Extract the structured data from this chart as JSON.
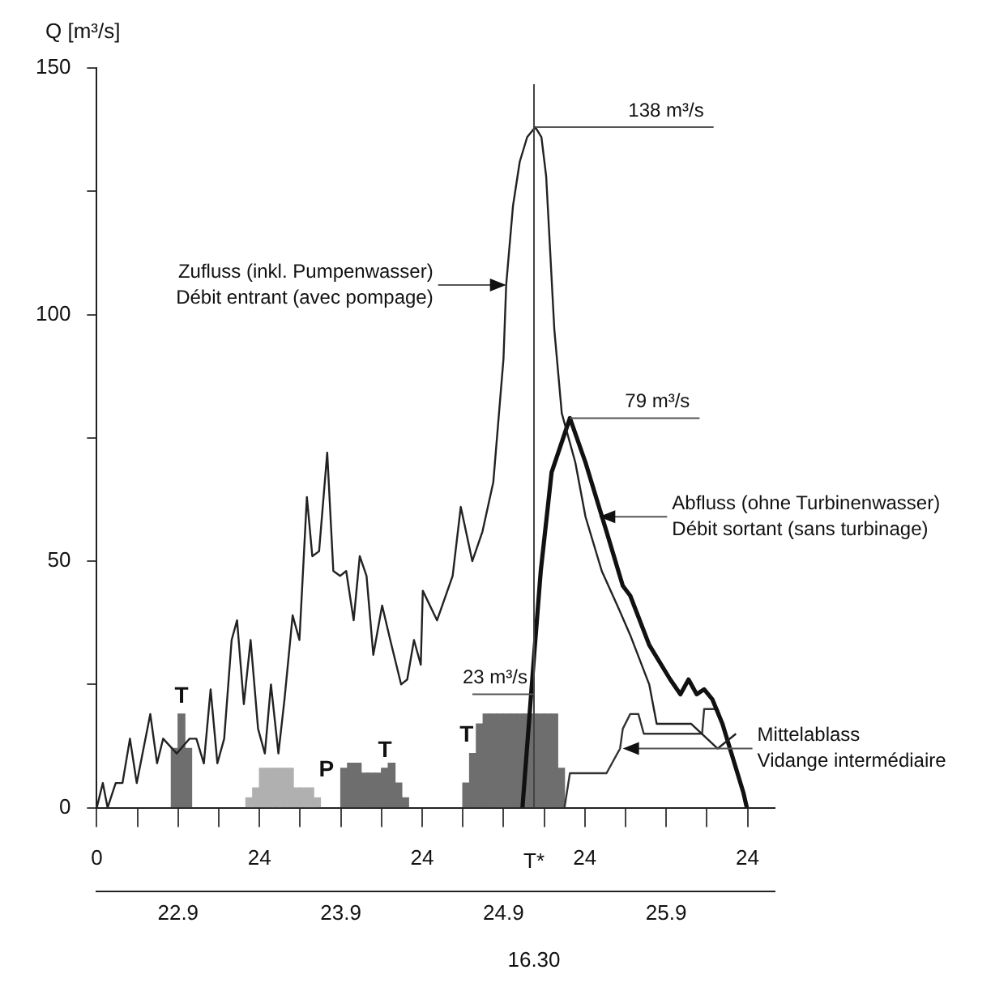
{
  "chart_data": {
    "type": "line",
    "ylabel": "Q [m³/s]",
    "xlim": [
      "--09-22T00:00",
      "--09-26T04:00"
    ],
    "ylim": [
      0,
      150
    ],
    "xticks": [
      {
        "value": "--09-22T00:00",
        "label": "0"
      },
      {
        "value": "--09-22T06:00",
        "label": null
      },
      {
        "value": "--09-22T12:00",
        "label": null
      },
      {
        "value": "--09-22T18:00",
        "label": null
      },
      {
        "value": "--09-23T00:00",
        "label": "24"
      },
      {
        "value": "--09-23T06:00",
        "label": null
      },
      {
        "value": "--09-23T12:00",
        "label": null
      },
      {
        "value": "--09-23T18:00",
        "label": null
      },
      {
        "value": "--09-24T00:00",
        "label": "24"
      },
      {
        "value": "--09-24T06:00",
        "label": null
      },
      {
        "value": "--09-24T12:00",
        "label": null
      },
      {
        "value": "--09-24T18:00",
        "label": null
      },
      {
        "value": "--09-25T00:00",
        "label": "24"
      },
      {
        "value": "--09-25T06:00",
        "label": null
      },
      {
        "value": "--09-25T12:00",
        "label": null
      },
      {
        "value": "--09-25T18:00",
        "label": null
      },
      {
        "value": "--09-26T00:00",
        "label": "24"
      }
    ],
    "x2lim": [
      "--09-22T00:00",
      "--09-26T04:00"
    ],
    "x2ticks": [
      {
        "value": "--09-22T12:00",
        "label": "22.9"
      },
      {
        "value": "--09-23T12:00",
        "label": "23.9"
      },
      {
        "value": "--09-24T12:00",
        "label": "24.9"
      },
      {
        "value": "--09-25T12:00",
        "label": "25.9"
      }
    ],
    "yticks": [
      0,
      {
        "value": 25,
        "label": null
      },
      50,
      {
        "value": 75,
        "label": null
      },
      100,
      {
        "value": 125,
        "label": null
      },
      150
    ],
    "series": [
      {
        "color": "#222222",
        "x": [
          "--09-22T00:00",
          "--09-22T00:54",
          "--09-22T01:36",
          "--09-22T02:48",
          "--09-22T03:48",
          "--09-22T04:54",
          "--09-22T05:54",
          "--09-22T07:54",
          "--09-22T08:54",
          "--09-22T09:48",
          "--09-22T11:48",
          "--09-22T13:42",
          "--09-22T14:42",
          "--09-22T15:48",
          "--09-22T16:48",
          "--09-22T17:48",
          "--09-22T18:48",
          "--09-22T19:54",
          "--09-22T20:42",
          "--09-22T21:42",
          "--09-22T22:42",
          "--09-22T23:48",
          "--09-23T00:48",
          "--09-23T01:42",
          "--09-23T02:48",
          "--09-23T03:42",
          "--09-23T04:54",
          "--09-23T05:54",
          "--09-23T07:00",
          "--09-23T07:48",
          "--09-23T08:48",
          "--09-23T10:00",
          "--09-23T10:54",
          "--09-23T11:54",
          "--09-23T12:48",
          "--09-23T13:54",
          "--09-23T14:48",
          "--09-23T15:48",
          "--09-23T16:48",
          "--09-23T18:06",
          "--09-23T19:18",
          "--09-23T20:54",
          "--09-23T21:48",
          "--09-23T22:48",
          "--09-23T23:48",
          "--09-24T00:06",
          "--09-24T02:12",
          "--09-24T04:30",
          "--09-24T05:42",
          "--09-24T07:24",
          "--09-24T08:54",
          "--09-24T10:30",
          "--09-24T12:00",
          "--09-24T12:24",
          "--09-24T13:24",
          "--09-24T14:24",
          "--09-24T15:30",
          "--09-24T16:42",
          "--09-24T17:36",
          "--09-24T18:18",
          "--09-24T19:30",
          "--09-24T20:36",
          "--09-24T22:36",
          "--09-25T00:06",
          "--09-25T02:30",
          "--09-25T04:48",
          "--09-25T06:42",
          "--09-25T09:30",
          "--09-25T10:36",
          "--09-25T15:42",
          "--09-25T19:36",
          "--09-25T22:18"
        ],
        "values": [
          0,
          5,
          0,
          5,
          5,
          14,
          5,
          19,
          9,
          14,
          11,
          14,
          14,
          9,
          24,
          9,
          14,
          34,
          38,
          21,
          34,
          16,
          11,
          25,
          11,
          22,
          39,
          34,
          63,
          51,
          52,
          72,
          48,
          47,
          48,
          38,
          51,
          47,
          31,
          41,
          34,
          25,
          26,
          34,
          29,
          44,
          38,
          47,
          61,
          50,
          56,
          66,
          91,
          106,
          122,
          131,
          136,
          138,
          136,
          128,
          97,
          80,
          70,
          59,
          48,
          41,
          35,
          25,
          17,
          17,
          12,
          15
        ]
      },
      {
        "color": "#111111",
        "x": [
          "--09-24T14:48",
          "--09-24T16:18",
          "--09-24T17:30",
          "--09-24T19:06",
          "--09-24T21:48",
          "--09-25T00:06",
          "--09-25T03:12",
          "--09-25T05:36",
          "--09-25T06:42",
          "--09-25T09:30",
          "--09-25T12:36",
          "--09-25T14:06",
          "--09-25T15:18",
          "--09-25T16:30",
          "--09-25T17:36",
          "--09-25T18:48",
          "--09-25T20:18",
          "--09-25T23:24",
          "--09-25T23:54"
        ],
        "values": [
          0,
          27,
          48,
          68,
          79,
          70,
          56,
          45,
          43,
          33,
          26,
          23,
          26,
          23,
          24,
          22,
          17,
          3,
          0
        ]
      },
      {
        "color": "#333333",
        "x": [
          "--09-24T21:00",
          "--09-24T21:48",
          "--09-25T03:12",
          "--09-25T04:00",
          "--09-25T05:12",
          "--09-25T05:36",
          "--09-25T06:42",
          "--09-25T07:54",
          "--09-25T08:42",
          "--09-25T17:18",
          "--09-25T17:36",
          "--09-25T19:36",
          "--09-25T20:18"
        ],
        "values": [
          0,
          7,
          7,
          9,
          12,
          16,
          19,
          19,
          15,
          15,
          20,
          20,
          17
        ]
      },
      {
        "type": "bar",
        "color": "#6e6e6e",
        "x": [
          "--09-22T11:30",
          "--09-22T12:30",
          "--09-22T13:30",
          "--09-23T12:30",
          "--09-23T13:30",
          "--09-23T14:30",
          "--09-23T15:30",
          "--09-23T16:30",
          "--09-23T17:30",
          "--09-23T18:30",
          "--09-23T19:30",
          "--09-23T20:30",
          "--09-23T21:30",
          "--09-24T06:30",
          "--09-24T07:30",
          "--09-24T08:30",
          "--09-24T09:30",
          "--09-24T10:30",
          "--09-24T11:30",
          "--09-24T12:30",
          "--09-24T13:30",
          "--09-24T14:30",
          "--09-24T15:30",
          "--09-24T16:30",
          "--09-24T17:30",
          "--09-24T18:30",
          "--09-24T19:30",
          "--09-24T20:30"
        ],
        "values": [
          12,
          19,
          12,
          8,
          9,
          9,
          7,
          7,
          7,
          8,
          9,
          5,
          2,
          5,
          11,
          17,
          19,
          19,
          19,
          19,
          19,
          19,
          19,
          19,
          19,
          19,
          19,
          8
        ]
      },
      {
        "type": "bar",
        "color": "#b0b0b0",
        "x": [
          "--09-22T22:30",
          "--09-22T23:30",
          "--09-23T00:30",
          "--09-23T01:30",
          "--09-23T02:30",
          "--09-23T03:30",
          "--09-23T04:30",
          "--09-23T05:30",
          "--09-23T06:30",
          "--09-23T07:30",
          "--09-23T08:30"
        ],
        "values": [
          2,
          4,
          8,
          8,
          8,
          8,
          8,
          4,
          4,
          4,
          2
        ]
      }
    ],
    "ref_lines": [
      {
        "axis": "x",
        "value": "--09-24T16:30",
        "label": "T*"
      }
    ],
    "annotations": [
      {
        "text": "Zufluss (inkl. Pumpenwasser)\nDébit entrant (avec pompage)",
        "x": "--09-24T12:24",
        "y": 106
      },
      {
        "text": "Abfluss (ohne Turbinenwasser)\nDébit sortant (sans turbinage)",
        "x": "--09-25T02:06",
        "y": 59
      },
      {
        "text": "Mittelablass\nVidange intermédiaire",
        "x": "--09-25T05:36",
        "y": 12
      },
      {
        "text": "138 m³/s",
        "x": "--09-24T16:42",
        "y": 138
      },
      {
        "text": "79 m³/s",
        "x": "--09-24T21:48",
        "y": 79
      },
      {
        "text": "23 m³/s",
        "x": "--09-24T16:30",
        "y": 23
      },
      {
        "text": "T",
        "x": "--09-22T12:30",
        "y": 19
      },
      {
        "text": "P",
        "x": "--09-23T07:30",
        "y": 4
      },
      {
        "text": "T",
        "x": "--09-23T18:30",
        "y": 8
      },
      {
        "text": "T",
        "x": "--09-24T07:30",
        "y": 11
      },
      "16.30"
    ]
  }
}
